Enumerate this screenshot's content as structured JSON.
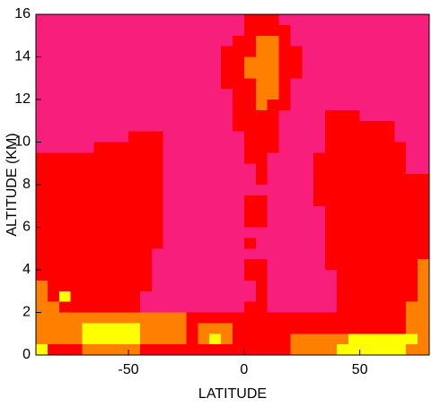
{
  "chart_data": {
    "type": "heatmap",
    "xlabel": "LATITUDE",
    "ylabel": "ALTITUDE (KM)",
    "xlim": [
      -90,
      80
    ],
    "ylim": [
      0,
      16
    ],
    "xticks": [
      -50,
      0,
      50
    ],
    "yticks": [
      0,
      2,
      4,
      6,
      8,
      10,
      12,
      14,
      16
    ],
    "colors": [
      "#f81e7c",
      "#ff0000",
      "#ff8000",
      "#ffff00"
    ],
    "x": [
      -87.5,
      -82.5,
      -77.5,
      -72.5,
      -67.5,
      -62.5,
      -57.5,
      -52.5,
      -47.5,
      -42.5,
      -37.5,
      -32.5,
      -27.5,
      -22.5,
      -17.5,
      -12.5,
      -7.5,
      -2.5,
      2.5,
      7.5,
      12.5,
      17.5,
      22.5,
      27.5,
      32.5,
      37.5,
      42.5,
      47.5,
      52.5,
      57.5,
      62.5,
      67.5,
      72.5,
      77.5
    ],
    "y": [
      15.75,
      15.25,
      14.75,
      14.25,
      13.75,
      13.25,
      12.75,
      12.25,
      11.75,
      11.25,
      10.75,
      10.25,
      9.75,
      9.25,
      8.75,
      8.25,
      7.75,
      7.25,
      6.75,
      6.25,
      5.75,
      5.25,
      4.75,
      4.25,
      3.75,
      3.25,
      2.75,
      2.25,
      1.75,
      1.25,
      0.75,
      0.25
    ],
    "z": [
      [
        0,
        0,
        0,
        0,
        0,
        0,
        0,
        0,
        0,
        0,
        0,
        0,
        0,
        0,
        0,
        0,
        0,
        0,
        1,
        1,
        1,
        0,
        0,
        0,
        0,
        0,
        0,
        0,
        0,
        0,
        0,
        0,
        0,
        0
      ],
      [
        0,
        0,
        0,
        0,
        0,
        0,
        0,
        0,
        0,
        0,
        0,
        0,
        0,
        0,
        0,
        0,
        0,
        0,
        1,
        1,
        1,
        1,
        0,
        0,
        0,
        0,
        0,
        0,
        0,
        0,
        0,
        0,
        0,
        0
      ],
      [
        0,
        0,
        0,
        0,
        0,
        0,
        0,
        0,
        0,
        0,
        0,
        0,
        0,
        0,
        0,
        0,
        0,
        1,
        1,
        2,
        2,
        1,
        0,
        0,
        0,
        0,
        0,
        0,
        0,
        0,
        0,
        0,
        0,
        0
      ],
      [
        0,
        0,
        0,
        0,
        0,
        0,
        0,
        0,
        0,
        0,
        0,
        0,
        0,
        0,
        0,
        0,
        1,
        1,
        1,
        2,
        2,
        1,
        1,
        0,
        0,
        0,
        0,
        0,
        0,
        0,
        0,
        0,
        0,
        0
      ],
      [
        0,
        0,
        0,
        0,
        0,
        0,
        0,
        0,
        0,
        0,
        0,
        0,
        0,
        0,
        0,
        0,
        1,
        1,
        2,
        2,
        2,
        1,
        1,
        0,
        0,
        0,
        0,
        0,
        0,
        0,
        0,
        0,
        0,
        0
      ],
      [
        0,
        0,
        0,
        0,
        0,
        0,
        0,
        0,
        0,
        0,
        0,
        0,
        0,
        0,
        0,
        0,
        1,
        1,
        2,
        2,
        2,
        1,
        1,
        0,
        0,
        0,
        0,
        0,
        0,
        0,
        0,
        0,
        0,
        0
      ],
      [
        0,
        0,
        0,
        0,
        0,
        0,
        0,
        0,
        0,
        0,
        0,
        0,
        0,
        0,
        0,
        0,
        1,
        1,
        1,
        2,
        2,
        1,
        0,
        0,
        0,
        0,
        0,
        0,
        0,
        0,
        0,
        0,
        0,
        0
      ],
      [
        0,
        0,
        0,
        0,
        0,
        0,
        0,
        0,
        0,
        0,
        0,
        0,
        0,
        0,
        0,
        0,
        0,
        1,
        1,
        2,
        2,
        1,
        0,
        0,
        0,
        0,
        0,
        0,
        0,
        0,
        0,
        0,
        0,
        0
      ],
      [
        0,
        0,
        0,
        0,
        0,
        0,
        0,
        0,
        0,
        0,
        0,
        0,
        0,
        0,
        0,
        0,
        0,
        1,
        1,
        2,
        1,
        1,
        0,
        0,
        0,
        0,
        0,
        0,
        0,
        0,
        0,
        0,
        0,
        0
      ],
      [
        0,
        0,
        0,
        0,
        0,
        0,
        0,
        0,
        0,
        0,
        0,
        0,
        0,
        0,
        0,
        0,
        0,
        1,
        1,
        1,
        1,
        0,
        0,
        0,
        0,
        1,
        1,
        1,
        0,
        0,
        0,
        0,
        0,
        0
      ],
      [
        0,
        0,
        0,
        0,
        0,
        0,
        0,
        0,
        0,
        0,
        0,
        0,
        0,
        0,
        0,
        0,
        0,
        1,
        1,
        1,
        1,
        0,
        0,
        0,
        0,
        1,
        1,
        1,
        1,
        1,
        1,
        0,
        0,
        0
      ],
      [
        0,
        0,
        0,
        0,
        0,
        0,
        0,
        0,
        1,
        1,
        1,
        0,
        0,
        0,
        0,
        0,
        0,
        0,
        1,
        1,
        1,
        0,
        0,
        0,
        0,
        1,
        1,
        1,
        1,
        1,
        1,
        0,
        0,
        0
      ],
      [
        0,
        0,
        0,
        0,
        0,
        1,
        1,
        1,
        1,
        1,
        1,
        0,
        0,
        0,
        0,
        0,
        0,
        0,
        1,
        1,
        1,
        0,
        0,
        0,
        0,
        1,
        1,
        1,
        1,
        1,
        1,
        1,
        0,
        0
      ],
      [
        1,
        1,
        1,
        1,
        1,
        1,
        1,
        1,
        1,
        1,
        1,
        0,
        0,
        0,
        0,
        0,
        0,
        0,
        1,
        1,
        0,
        0,
        0,
        0,
        1,
        1,
        1,
        1,
        1,
        1,
        1,
        1,
        0,
        0
      ],
      [
        1,
        1,
        1,
        1,
        1,
        1,
        1,
        1,
        1,
        1,
        1,
        0,
        0,
        0,
        0,
        0,
        0,
        0,
        0,
        1,
        0,
        0,
        0,
        0,
        1,
        1,
        1,
        1,
        1,
        1,
        1,
        1,
        0,
        0
      ],
      [
        1,
        1,
        1,
        1,
        1,
        1,
        1,
        1,
        1,
        1,
        1,
        0,
        0,
        0,
        0,
        0,
        0,
        0,
        0,
        1,
        0,
        0,
        0,
        0,
        1,
        1,
        1,
        1,
        1,
        1,
        1,
        1,
        1,
        1
      ],
      [
        1,
        1,
        1,
        1,
        1,
        1,
        1,
        1,
        1,
        1,
        1,
        0,
        0,
        0,
        0,
        0,
        0,
        0,
        0,
        0,
        0,
        0,
        0,
        0,
        1,
        1,
        1,
        1,
        1,
        1,
        1,
        1,
        1,
        1
      ],
      [
        1,
        1,
        1,
        1,
        1,
        1,
        1,
        1,
        1,
        1,
        1,
        0,
        0,
        0,
        0,
        0,
        0,
        0,
        1,
        1,
        0,
        0,
        0,
        0,
        1,
        1,
        1,
        1,
        1,
        1,
        1,
        1,
        1,
        1
      ],
      [
        1,
        1,
        1,
        1,
        1,
        1,
        1,
        1,
        1,
        1,
        1,
        0,
        0,
        0,
        0,
        0,
        0,
        0,
        1,
        1,
        0,
        0,
        0,
        0,
        0,
        1,
        1,
        1,
        1,
        1,
        1,
        1,
        1,
        1
      ],
      [
        1,
        1,
        1,
        1,
        1,
        1,
        1,
        1,
        1,
        1,
        1,
        0,
        0,
        0,
        0,
        0,
        0,
        0,
        1,
        1,
        0,
        0,
        0,
        0,
        0,
        1,
        1,
        1,
        1,
        1,
        1,
        1,
        1,
        1
      ],
      [
        1,
        1,
        1,
        1,
        1,
        1,
        1,
        1,
        1,
        1,
        1,
        0,
        0,
        0,
        0,
        0,
        0,
        0,
        0,
        0,
        0,
        0,
        0,
        0,
        0,
        1,
        1,
        1,
        1,
        1,
        1,
        1,
        1,
        1
      ],
      [
        1,
        1,
        1,
        1,
        1,
        1,
        1,
        1,
        1,
        1,
        1,
        0,
        0,
        0,
        0,
        0,
        0,
        0,
        1,
        0,
        0,
        0,
        0,
        0,
        0,
        1,
        1,
        1,
        1,
        1,
        1,
        1,
        1,
        1
      ],
      [
        1,
        1,
        1,
        1,
        1,
        1,
        1,
        1,
        1,
        1,
        0,
        0,
        0,
        0,
        0,
        0,
        0,
        0,
        0,
        0,
        0,
        0,
        0,
        0,
        0,
        1,
        1,
        1,
        1,
        1,
        1,
        1,
        1,
        1
      ],
      [
        1,
        1,
        1,
        1,
        1,
        1,
        1,
        1,
        1,
        1,
        0,
        0,
        0,
        0,
        0,
        0,
        0,
        0,
        1,
        1,
        0,
        0,
        0,
        0,
        0,
        1,
        1,
        1,
        1,
        1,
        1,
        1,
        1,
        2
      ],
      [
        1,
        1,
        1,
        1,
        1,
        1,
        1,
        1,
        1,
        1,
        0,
        0,
        0,
        0,
        0,
        0,
        0,
        0,
        1,
        1,
        0,
        0,
        0,
        0,
        0,
        0,
        1,
        1,
        1,
        1,
        1,
        1,
        1,
        2
      ],
      [
        2,
        1,
        1,
        1,
        1,
        1,
        1,
        1,
        1,
        1,
        0,
        0,
        0,
        0,
        0,
        0,
        0,
        0,
        0,
        1,
        0,
        0,
        0,
        0,
        0,
        0,
        1,
        1,
        1,
        1,
        1,
        1,
        1,
        2
      ],
      [
        2,
        1,
        3,
        1,
        1,
        1,
        1,
        1,
        1,
        0,
        0,
        0,
        0,
        0,
        0,
        0,
        0,
        0,
        0,
        1,
        0,
        0,
        0,
        0,
        0,
        0,
        1,
        1,
        1,
        1,
        1,
        1,
        1,
        2
      ],
      [
        2,
        2,
        1,
        1,
        1,
        1,
        1,
        1,
        1,
        0,
        0,
        0,
        0,
        0,
        0,
        0,
        0,
        0,
        1,
        1,
        0,
        0,
        0,
        0,
        0,
        0,
        1,
        1,
        1,
        1,
        1,
        1,
        2,
        2
      ],
      [
        2,
        2,
        2,
        2,
        2,
        2,
        2,
        2,
        2,
        2,
        2,
        2,
        2,
        1,
        1,
        1,
        1,
        1,
        1,
        1,
        1,
        1,
        1,
        1,
        1,
        1,
        1,
        1,
        1,
        1,
        1,
        1,
        2,
        2
      ],
      [
        2,
        2,
        2,
        2,
        3,
        3,
        3,
        3,
        3,
        2,
        2,
        2,
        2,
        1,
        2,
        2,
        2,
        1,
        1,
        1,
        1,
        1,
        1,
        1,
        1,
        1,
        1,
        1,
        1,
        1,
        1,
        1,
        2,
        2
      ],
      [
        2,
        2,
        2,
        2,
        3,
        3,
        3,
        3,
        3,
        2,
        2,
        2,
        2,
        1,
        2,
        3,
        2,
        1,
        1,
        1,
        1,
        1,
        2,
        2,
        2,
        2,
        2,
        3,
        3,
        3,
        3,
        3,
        3,
        2
      ],
      [
        3,
        1,
        1,
        1,
        2,
        2,
        2,
        2,
        2,
        1,
        1,
        1,
        1,
        1,
        1,
        1,
        1,
        1,
        1,
        1,
        1,
        1,
        2,
        2,
        2,
        2,
        3,
        3,
        3,
        3,
        3,
        3,
        2,
        2
      ]
    ]
  }
}
